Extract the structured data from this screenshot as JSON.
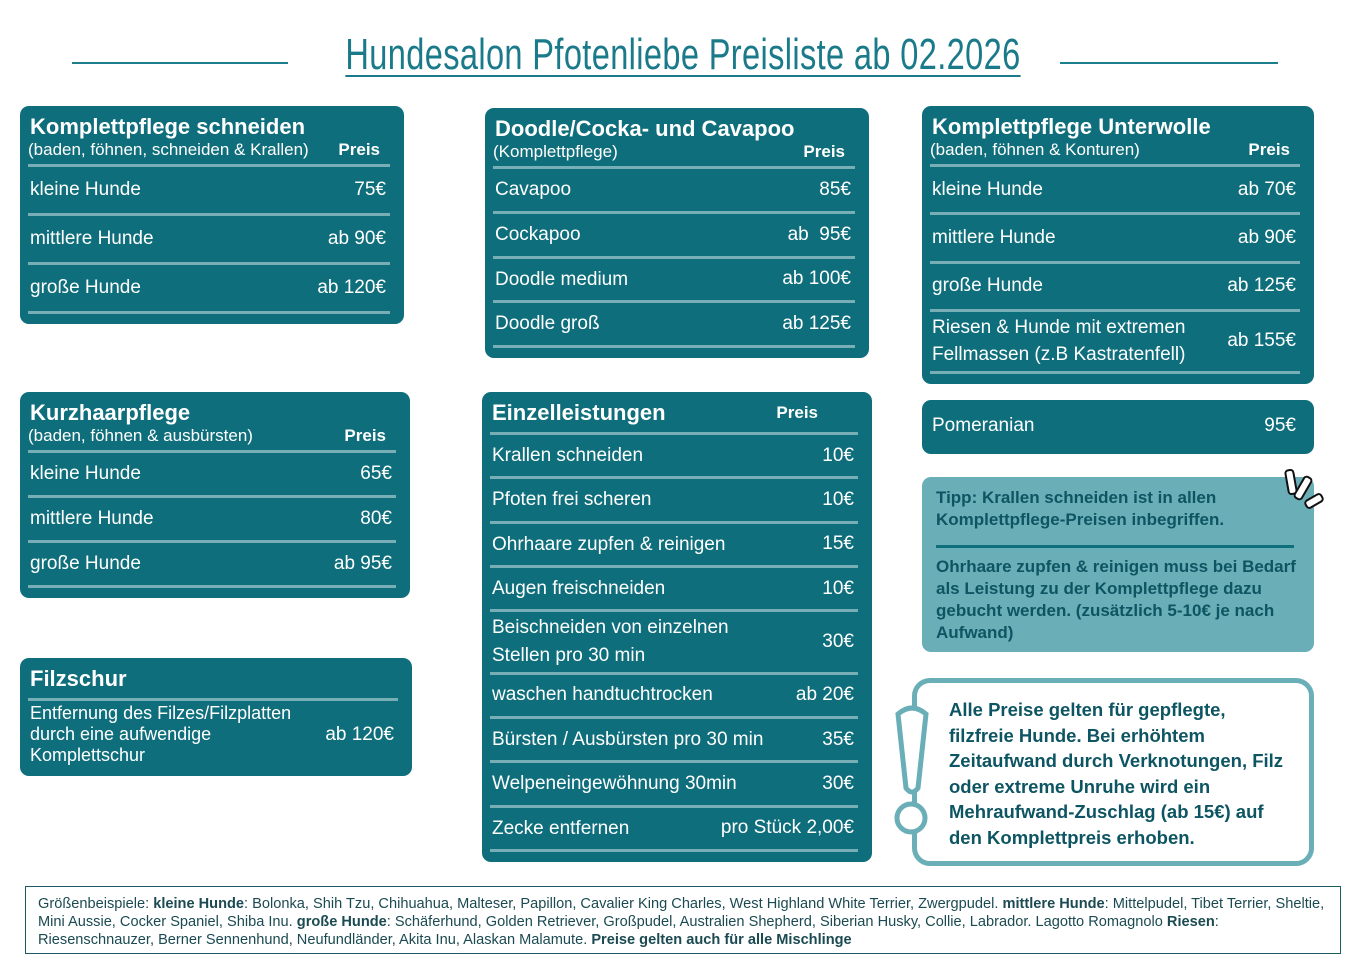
{
  "title": "Hundesalon Pfotenliebe Preisliste ab 02.2026",
  "cards": [
    {
      "title": "Komplettpflege schneiden",
      "subtitle": "(baden, föhnen, schneiden & Krallen)",
      "price_header": "Preis",
      "rows": [
        [
          "kleine Hunde",
          "75€"
        ],
        [
          "mittlere Hunde",
          "ab 90€"
        ],
        [
          "große Hunde",
          "ab 120€"
        ]
      ]
    },
    {
      "title": "Doodle/Cocka- und Cavapoo",
      "subtitle": "(Komplettpflege)",
      "price_header": "Preis",
      "rows": [
        [
          "Cavapoo",
          "85€"
        ],
        [
          "Cockapoo",
          "ab  95€"
        ],
        [
          "Doodle medium",
          "ab 100€"
        ],
        [
          "Doodle groß",
          "ab 125€"
        ]
      ]
    },
    {
      "title": "Komplettpflege Unterwolle",
      "subtitle": "(baden, föhnen & Konturen)",
      "price_header": "Preis",
      "rows": [
        [
          "kleine Hunde",
          "ab 70€"
        ],
        [
          "mittlere Hunde",
          "ab 90€"
        ],
        [
          "große Hunde",
          "ab 125€"
        ],
        [
          "Riesen & Hunde mit extremen Fellmassen (z.B Kastratenfell)",
          "ab 155€"
        ]
      ]
    },
    {
      "rows": [
        [
          "Pomeranian",
          "95€"
        ]
      ]
    },
    {
      "title": "Kurzhaarpflege",
      "subtitle": "(baden, föhnen & ausbürsten)",
      "price_header": "Preis",
      "rows": [
        [
          "kleine Hunde",
          "65€"
        ],
        [
          "mittlere Hunde",
          "80€"
        ],
        [
          "große Hunde",
          "ab 95€"
        ]
      ]
    },
    {
      "title": "Filzschur",
      "rows": [
        [
          "Entfernung des Filzes/Filzplatten durch eine aufwendige Komplettschur",
          "ab 120€"
        ]
      ]
    },
    {
      "title": "Einzelleistungen",
      "price_header": "Preis",
      "rows": [
        [
          "Krallen schneiden",
          "10€"
        ],
        [
          "Pfoten frei scheren",
          "10€"
        ],
        [
          "Ohrhaare zupfen & reinigen",
          "15€"
        ],
        [
          "Augen freischneiden",
          "10€"
        ],
        [
          "Beischneiden von einzelnen Stellen pro 30 min",
          "30€"
        ],
        [
          "waschen handtuchtrocken",
          "ab 20€"
        ],
        [
          "Bürsten / Ausbürsten pro 30 min",
          "35€"
        ],
        [
          "Welpeneingewöhnung 30min",
          "30€"
        ],
        [
          "Zecke entfernen",
          "pro Stück 2,00€"
        ]
      ]
    }
  ],
  "tip": [
    "Tipp: Krallen schneiden ist in allen Komplettpflege-Preisen inbegriffen.",
    "Ohrhaare zupfen & reinigen muss bei Bedarf als Leistung zu der Komplettpflege dazu gebucht werden. (zusätzlich 5-10€ je nach Aufwand)"
  ],
  "notice": "Alle Preise gelten für gepflegte, filzfreie Hunde. Bei erhöhtem Zeitaufwand durch Verknotungen, Filz oder extreme Unruhe wird ein Mehraufwand-Zuschlag (ab 15€) auf den Komplettpreis erhoben.",
  "footer": [
    {
      "text": "Größenbeispiele: "
    },
    {
      "text": "kleine Hunde",
      "bold": true
    },
    {
      "text": ": Bolonka, Shih Tzu, Chihuahua, Malteser, Papillon, Cavalier King Charles, West Highland White Terrier, Zwergpudel. "
    },
    {
      "text": "mittlere Hunde",
      "bold": true
    },
    {
      "text": ": Mittelpudel, Tibet Terrier, Sheltie, Mini Aussie, Cocker Spaniel, Shiba Inu. "
    },
    {
      "text": "große Hunde",
      "bold": true
    },
    {
      "text": ": Schäferhund, Golden Retriever, Großpudel, Australien Shepherd, Siberian Husky, Collie, Labrador. Lagotto Romagnolo "
    },
    {
      "text": "Riesen",
      "bold": true
    },
    {
      "text": ": Riesenschnauzer, Berner Sennenhund, Neufundländer, Akita Inu, Alaskan Malamute. "
    },
    {
      "text": "Preise gelten auch für alle Mischlinge",
      "bold": true
    }
  ]
}
